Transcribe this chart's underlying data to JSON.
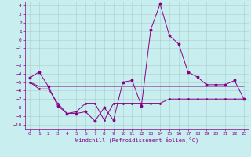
{
  "x": [
    0,
    1,
    2,
    3,
    4,
    5,
    6,
    7,
    8,
    9,
    10,
    11,
    12,
    13,
    14,
    15,
    16,
    17,
    18,
    19,
    20,
    21,
    22,
    23
  ],
  "line1": [
    -4.5,
    -3.8,
    -5.5,
    -7.8,
    -8.7,
    -8.7,
    -8.5,
    -9.6,
    -8.0,
    -9.5,
    -5.0,
    -4.8,
    -7.8,
    1.2,
    4.2,
    0.5,
    -0.5,
    -3.8,
    -4.4,
    -5.3,
    -5.3,
    -5.3,
    -4.8,
    -7.0
  ],
  "line2": [
    -5.0,
    -5.8,
    -5.8,
    -7.5,
    -8.7,
    -8.5,
    -7.5,
    -7.5,
    -9.5,
    -7.5,
    -7.5,
    -7.5,
    -7.5,
    -7.5,
    -7.5,
    -7.0,
    -7.0,
    -7.0,
    -7.0,
    -7.0,
    -7.0,
    -7.0,
    -7.0,
    -7.0
  ],
  "line3": [
    -5.0,
    -5.5,
    -5.5,
    -5.5,
    -5.5,
    -5.5,
    -5.5,
    -5.5,
    -5.5,
    -5.5,
    -5.5,
    -5.5,
    -5.5,
    -5.5,
    -5.5,
    -5.5,
    -5.5,
    -5.5,
    -5.5,
    -5.5,
    -5.5,
    -5.5,
    -5.5,
    -5.5
  ],
  "line_color": "#880088",
  "bg_color": "#c8eef0",
  "grid_color": "#aacccc",
  "ylim": [
    -10.5,
    4.5
  ],
  "xlim": [
    -0.5,
    23.5
  ],
  "yticks": [
    4,
    3,
    2,
    1,
    0,
    -1,
    -2,
    -3,
    -4,
    -5,
    -6,
    -7,
    -8,
    -9,
    -10
  ],
  "xticks": [
    0,
    1,
    2,
    3,
    4,
    5,
    6,
    7,
    8,
    9,
    10,
    11,
    12,
    13,
    14,
    15,
    16,
    17,
    18,
    19,
    20,
    21,
    22,
    23
  ],
  "xlabel": "Windchill (Refroidissement éolien,°C)"
}
